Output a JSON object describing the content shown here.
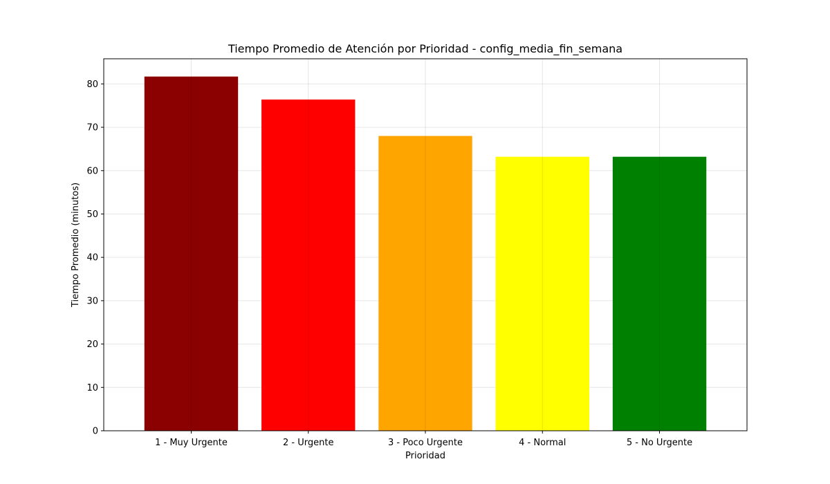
{
  "chart_data": {
    "type": "bar",
    "title": "Tiempo Promedio de Atención por Prioridad - config_media_fin_semana",
    "xlabel": "Prioridad",
    "ylabel": "Tiempo Promedio (minutos)",
    "categories": [
      "1 - Muy Urgente",
      "2 - Urgente",
      "3 - Poco Urgente",
      "4 - Normal",
      "5 - No Urgente"
    ],
    "values": [
      81.7,
      76.4,
      68.0,
      63.2,
      63.2
    ],
    "colors": [
      "#8b0000",
      "#ff0000",
      "#ffa500",
      "#ffff00",
      "#008000"
    ],
    "ylim": [
      0,
      85.8
    ],
    "yticks": [
      0,
      10,
      20,
      30,
      40,
      50,
      60,
      70,
      80
    ],
    "grid": true,
    "legend": "none"
  }
}
